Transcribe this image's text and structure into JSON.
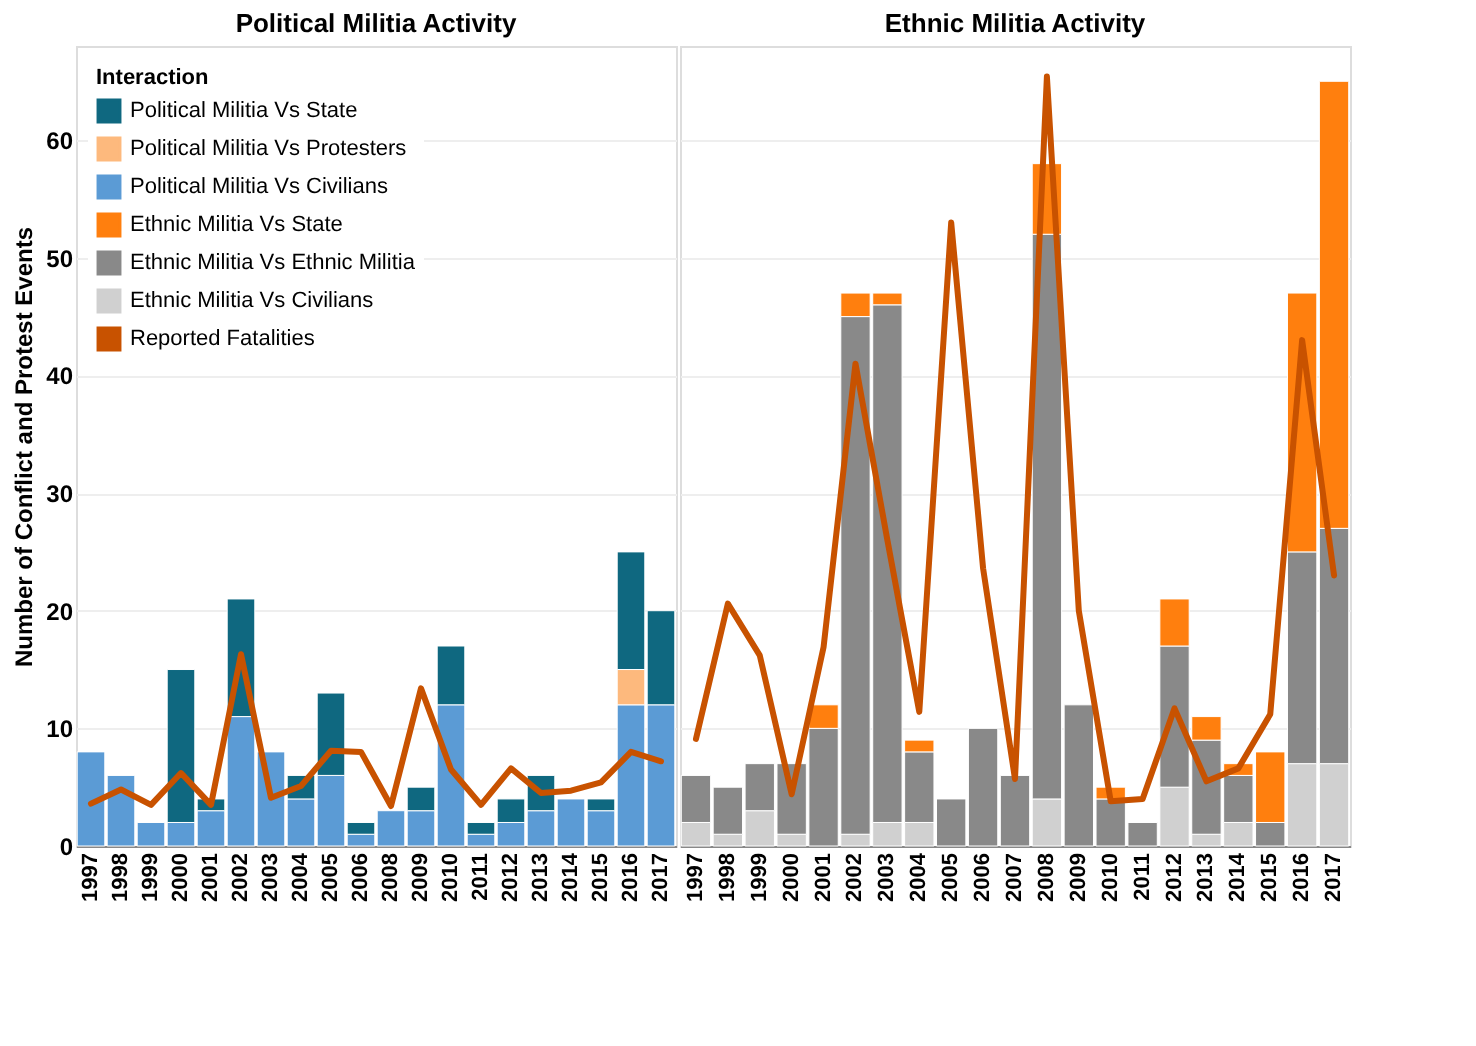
{
  "chart_data": [
    {
      "type": "bar",
      "title": "Political Militia Activity",
      "ylabel": "Number of Conflict and Protest Events",
      "legend_title": "Interaction",
      "legend": "top left",
      "stacked": true,
      "grid": "y",
      "ylim": [
        0,
        68
      ],
      "yticks": [
        0,
        10,
        20,
        30,
        40,
        50,
        60
      ],
      "categories": [
        "1997",
        "1998",
        "1999",
        "2000",
        "2001",
        "2002",
        "2003",
        "2004",
        "2005",
        "2006",
        "2008",
        "2009",
        "2010",
        "2011",
        "2012",
        "2013",
        "2014",
        "2015",
        "2016",
        "2017"
      ],
      "series": [
        {
          "name": "Political Militia Vs Civilians",
          "color": "#5b9bd5",
          "values": [
            8,
            6,
            2,
            2,
            3,
            11,
            8,
            4,
            6,
            1,
            3,
            3,
            12,
            1,
            2,
            3,
            4,
            3,
            12,
            12
          ]
        },
        {
          "name": "Political Militia Vs Protesters",
          "color": "#fdb97d",
          "values": [
            0,
            0,
            0,
            0,
            0,
            0,
            0,
            0,
            0,
            0,
            0,
            0,
            0,
            0,
            0,
            0,
            0,
            0,
            3,
            0
          ]
        },
        {
          "name": "Political Militia Vs State",
          "color": "#0f6880",
          "values": [
            0,
            0,
            0,
            13,
            1,
            10,
            0,
            2,
            7,
            1,
            0,
            2,
            5,
            1,
            2,
            3,
            0,
            1,
            10,
            8
          ]
        },
        {
          "name": "Reported Fatalities",
          "type": "line",
          "color": "#c85200",
          "values": [
            3.6,
            4.8,
            3.5,
            6.2,
            3.5,
            16.3,
            4.1,
            5.1,
            8.1,
            8.0,
            3.4,
            13.4,
            6.5,
            3.5,
            6.6,
            4.5,
            4.7,
            5.4,
            8.0,
            7.2
          ]
        }
      ]
    },
    {
      "type": "bar",
      "title": "Ethnic Militia Activity",
      "legend": "top left",
      "stacked": true,
      "grid": "y",
      "ylim": [
        0,
        68
      ],
      "yticks": [
        0,
        10,
        20,
        30,
        40,
        50,
        60
      ],
      "tick_labels": "x",
      "categories": [
        "1997",
        "1998",
        "1999",
        "2000",
        "2001",
        "2002",
        "2003",
        "2004",
        "2005",
        "2006",
        "2007",
        "2008",
        "2009",
        "2010",
        "2011",
        "2012",
        "2013",
        "2014",
        "2015",
        "2016",
        "2017"
      ],
      "series": [
        {
          "name": "Ethnic Militia Vs Civilians",
          "color": "#d0d0d0",
          "values": [
            2,
            1,
            3,
            1,
            0,
            1,
            2,
            2,
            0,
            0,
            0,
            4,
            0,
            0,
            0,
            5,
            1,
            2,
            0,
            7,
            7
          ]
        },
        {
          "name": "Ethnic Militia Vs Ethnic Militia",
          "color": "#898989",
          "values": [
            4,
            4,
            4,
            6,
            10,
            44,
            44,
            6,
            4,
            10,
            6,
            48,
            12,
            4,
            2,
            12,
            8,
            4,
            2,
            18,
            20
          ]
        },
        {
          "name": "Ethnic Militia Vs State",
          "color": "#ff7f0e",
          "values": [
            0,
            0,
            0,
            0,
            2,
            2,
            1,
            1,
            0,
            0,
            0,
            6,
            0,
            1,
            0,
            4,
            2,
            1,
            6,
            22,
            38
          ]
        },
        {
          "name": "Reported Fatalities",
          "type": "line",
          "color": "#c85200",
          "values": [
            9.1,
            20.6,
            16.2,
            4.4,
            16.9,
            41,
            26,
            11.4,
            53,
            23.6,
            5.7,
            65.4,
            20,
            3.8,
            4.0,
            11.7,
            5.5,
            6.6,
            11.2,
            43,
            23
          ]
        }
      ]
    }
  ]
}
